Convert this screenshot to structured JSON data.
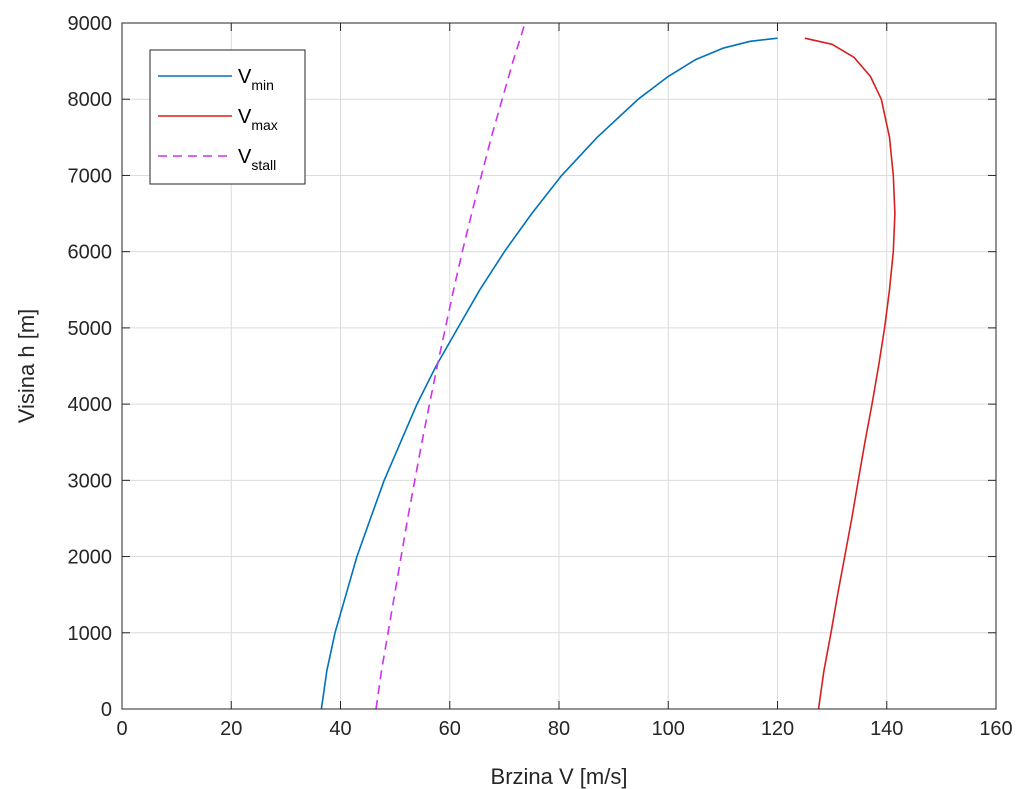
{
  "chart_data": {
    "type": "line",
    "title": "",
    "xlabel": "Brzina V [m/s]",
    "ylabel": "Visina h [m]",
    "xlim": [
      0,
      160
    ],
    "ylim": [
      0,
      9000
    ],
    "x_ticks": [
      "0",
      "20",
      "40",
      "60",
      "80",
      "100",
      "120",
      "140",
      "160"
    ],
    "y_ticks": [
      "0",
      "1000",
      "2000",
      "3000",
      "4000",
      "5000",
      "6000",
      "7000",
      "8000",
      "9000"
    ],
    "grid": true,
    "legend_position": "top-left",
    "series": [
      {
        "name": "V",
        "subscript": "min",
        "color": "#0072bd",
        "style": "solid",
        "points": [
          [
            36.5,
            0
          ],
          [
            37.5,
            500
          ],
          [
            39,
            1000
          ],
          [
            41,
            1500
          ],
          [
            43,
            2000
          ],
          [
            45.5,
            2500
          ],
          [
            48,
            3000
          ],
          [
            51,
            3500
          ],
          [
            54,
            4000
          ],
          [
            57.5,
            4500
          ],
          [
            61.5,
            5000
          ],
          [
            65.5,
            5500
          ],
          [
            70,
            6000
          ],
          [
            75,
            6500
          ],
          [
            80.5,
            7000
          ],
          [
            87,
            7500
          ],
          [
            94.5,
            8000
          ],
          [
            100,
            8300
          ],
          [
            105,
            8520
          ],
          [
            110,
            8670
          ],
          [
            115,
            8760
          ],
          [
            120,
            8800
          ]
        ]
      },
      {
        "name": "V",
        "subscript": "max",
        "color": "#d62020",
        "style": "solid",
        "points": [
          [
            127.5,
            0
          ],
          [
            128.5,
            500
          ],
          [
            129.8,
            1000
          ],
          [
            131,
            1500
          ],
          [
            132.3,
            2000
          ],
          [
            133.6,
            2500
          ],
          [
            134.8,
            3000
          ],
          [
            136,
            3500
          ],
          [
            137.3,
            4000
          ],
          [
            138.5,
            4500
          ],
          [
            139.6,
            5000
          ],
          [
            140.5,
            5500
          ],
          [
            141.2,
            6000
          ],
          [
            141.5,
            6500
          ],
          [
            141.2,
            7000
          ],
          [
            140.5,
            7500
          ],
          [
            139,
            8000
          ],
          [
            137,
            8300
          ],
          [
            134,
            8550
          ],
          [
            130,
            8720
          ],
          [
            125,
            8800
          ]
        ]
      },
      {
        "name": "V",
        "subscript": "stall",
        "color": "#cc33ee",
        "style": "dashed",
        "points": [
          [
            46.5,
            0
          ],
          [
            47.5,
            500
          ],
          [
            48.7,
            1000
          ],
          [
            49.9,
            1500
          ],
          [
            51.1,
            2000
          ],
          [
            52.3,
            2500
          ],
          [
            53.6,
            3000
          ],
          [
            54.9,
            3500
          ],
          [
            56.3,
            4000
          ],
          [
            57.7,
            4500
          ],
          [
            59.2,
            5000
          ],
          [
            60.7,
            5500
          ],
          [
            62.3,
            6000
          ],
          [
            64,
            6500
          ],
          [
            65.8,
            7000
          ],
          [
            67.6,
            7500
          ],
          [
            69.6,
            8000
          ],
          [
            71.6,
            8500
          ],
          [
            73.8,
            9000
          ]
        ]
      }
    ]
  }
}
